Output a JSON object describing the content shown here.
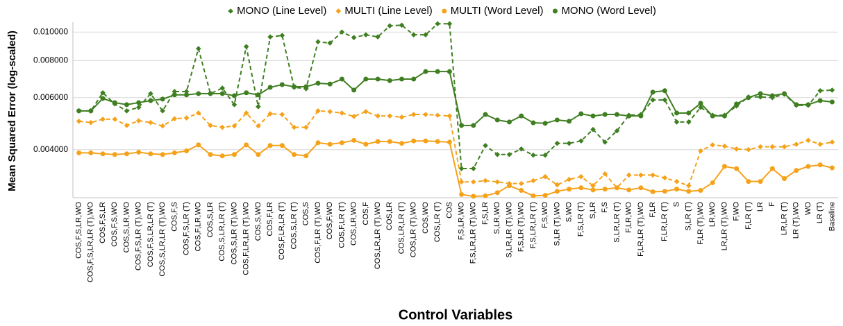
{
  "chart_data": {
    "type": "line",
    "x_label": "Control Variables",
    "y_label": "Mean Squared Error (log-scaled)",
    "log_y": true,
    "grid": true,
    "legend": "top",
    "categories": [
      "COS,F,S,LR,WO",
      "COS,F,S,LR,LR (T),WO",
      "COS,F,S,LR",
      "COS,F,S,WO",
      "COS,S,LR,WO",
      "COS,F,S,LR (T),WO",
      "COS,F,S,LR,LR (T)",
      "COS,S,LR,LR (T),WO",
      "COS,F,S",
      "COS,F,S,LR (T)",
      "COS,F,LR,WO",
      "COS,S,LR",
      "COS,S,LR,LR (T)",
      "COS,S,LR (T),WO",
      "COS,F,LR,LR (T),WO",
      "COS,S,WO",
      "COS,F,LR",
      "COS,F,LR,LR (T)",
      "COS,S,LR (T)",
      "COS,S",
      "COS,F,LR (T),WO",
      "COS,F,WO",
      "COS,F,LR (T)",
      "COS,LR,WO",
      "COS,F",
      "COS,LR,LR (T),WO",
      "COS,LR",
      "COS,LR,LR (T)",
      "COS,LR (T),WO",
      "COS,WO",
      "COS,LR (T)",
      "COS",
      "F,S,LR,WO",
      "F,S,LR,LR (T),WO",
      "F,S,LR",
      "S,LR,WO",
      "S,LR,LR (T),WO",
      "F,S,LR (T),WO",
      "F,S,LR,LR (T)",
      "F,S,WO",
      "S,LR (T),WO",
      "S,WO",
      "F,S,LR (T)",
      "S,LR",
      "F,S",
      "S,LR,LR (T)",
      "F,LR,WO",
      "F,LR,LR (T),WO",
      "F,LR",
      "F,LR,LR (T)",
      "S",
      "S,LR (T)",
      "F,LR (T),WO",
      "LR,WO",
      "LR,LR (T),WO",
      "F,WO",
      "F,LR (T)",
      "LR",
      "F",
      "LR,LR (T)",
      "LR (T),WO",
      "WO",
      "LR (T)",
      "Baseline"
    ],
    "ylim": [
      0.00275,
      0.0108
    ],
    "yticks": [
      {
        "value": 0.004,
        "label": "0.004000"
      },
      {
        "value": 0.006,
        "label": "0.006000"
      },
      {
        "value": 0.008,
        "label": "0.008000"
      },
      {
        "value": 0.01,
        "label": "0.010000"
      }
    ],
    "series": [
      {
        "name": "MONO (Line Level)",
        "color": "#3f7f22",
        "dashed": true,
        "marker": "diamond",
        "values": [
          0.00541,
          0.00541,
          0.00623,
          0.00571,
          0.00541,
          0.00556,
          0.00619,
          0.00541,
          0.00629,
          0.00629,
          0.00879,
          0.00619,
          0.00646,
          0.00568,
          0.00893,
          0.00559,
          0.00963,
          0.00974,
          0.0065,
          0.00643,
          0.00927,
          0.00918,
          0.01,
          0.00958,
          0.00979,
          0.00963,
          0.0105,
          0.01055,
          0.00979,
          0.00979,
          0.01067,
          0.01067,
          0.00345,
          0.00345,
          0.00413,
          0.00385,
          0.00385,
          0.00402,
          0.00383,
          0.00383,
          0.0042,
          0.0042,
          0.00428,
          0.00468,
          0.00424,
          0.00463,
          0.00523,
          0.00526,
          0.00589,
          0.00589,
          0.00496,
          0.00496,
          0.00556,
          0.00523,
          0.00523,
          0.00562,
          0.00603,
          0.00603,
          0.006,
          0.00616,
          0.00565,
          0.00565,
          0.00633,
          0.00636
        ]
      },
      {
        "name": "MULTI (Line Level)",
        "color": "#f5a21b",
        "dashed": true,
        "marker": "diamond",
        "values": [
          0.00499,
          0.00494,
          0.00507,
          0.00507,
          0.00483,
          0.00501,
          0.00494,
          0.00481,
          0.00509,
          0.00512,
          0.00532,
          0.00483,
          0.00476,
          0.00481,
          0.00532,
          0.00481,
          0.00529,
          0.00526,
          0.00476,
          0.00476,
          0.00541,
          0.00538,
          0.00532,
          0.00518,
          0.00538,
          0.0052,
          0.0052,
          0.00515,
          0.00526,
          0.00526,
          0.00523,
          0.0052,
          0.00311,
          0.00311,
          0.00314,
          0.00311,
          0.00307,
          0.00307,
          0.00314,
          0.00324,
          0.00304,
          0.00317,
          0.00324,
          0.00302,
          0.00331,
          0.00297,
          0.00328,
          0.00328,
          0.00328,
          0.00321,
          0.00312,
          0.00302,
          0.00396,
          0.00415,
          0.00411,
          0.00402,
          0.004,
          0.00409,
          0.00409,
          0.00409,
          0.00417,
          0.0043,
          0.00417,
          0.00424
        ]
      },
      {
        "name": "MULTI (Word Level)",
        "color": "#f5a21b",
        "dashed": false,
        "marker": "circle",
        "values": [
          0.0039,
          0.0039,
          0.00387,
          0.00385,
          0.00387,
          0.00392,
          0.00387,
          0.00385,
          0.0039,
          0.00396,
          0.00415,
          0.00385,
          0.00381,
          0.00385,
          0.00415,
          0.00385,
          0.00413,
          0.00413,
          0.00385,
          0.00381,
          0.00422,
          0.00417,
          0.00422,
          0.0043,
          0.00417,
          0.00426,
          0.00426,
          0.0042,
          0.00428,
          0.00428,
          0.00426,
          0.00424,
          0.00282,
          0.00278,
          0.00279,
          0.00286,
          0.00302,
          0.00291,
          0.00279,
          0.0028,
          0.00289,
          0.00294,
          0.00297,
          0.00292,
          0.00294,
          0.00297,
          0.00292,
          0.00297,
          0.00288,
          0.00289,
          0.00294,
          0.00289,
          0.00291,
          0.00309,
          0.00351,
          0.00345,
          0.00312,
          0.00312,
          0.00345,
          0.00319,
          0.0034,
          0.00351,
          0.00355,
          0.00347
        ]
      },
      {
        "name": "MONO (Word Level)",
        "color": "#3f7f22",
        "dashed": false,
        "marker": "circle",
        "values": [
          0.00541,
          0.00541,
          0.00596,
          0.00577,
          0.00568,
          0.00577,
          0.00586,
          0.00593,
          0.00613,
          0.00613,
          0.00619,
          0.00619,
          0.00619,
          0.00609,
          0.00623,
          0.00613,
          0.0065,
          0.00664,
          0.00653,
          0.00653,
          0.00671,
          0.00667,
          0.00693,
          0.00636,
          0.00693,
          0.00693,
          0.00685,
          0.00693,
          0.00693,
          0.00735,
          0.00735,
          0.00735,
          0.00483,
          0.00483,
          0.00526,
          0.00504,
          0.00496,
          0.0052,
          0.00493,
          0.00491,
          0.00504,
          0.00499,
          0.00529,
          0.0052,
          0.00526,
          0.00526,
          0.0052,
          0.0052,
          0.00626,
          0.00633,
          0.00532,
          0.00532,
          0.00574,
          0.0052,
          0.0052,
          0.00571,
          0.006,
          0.00619,
          0.00609,
          0.00619,
          0.00568,
          0.00568,
          0.00586,
          0.0058
        ]
      }
    ]
  }
}
